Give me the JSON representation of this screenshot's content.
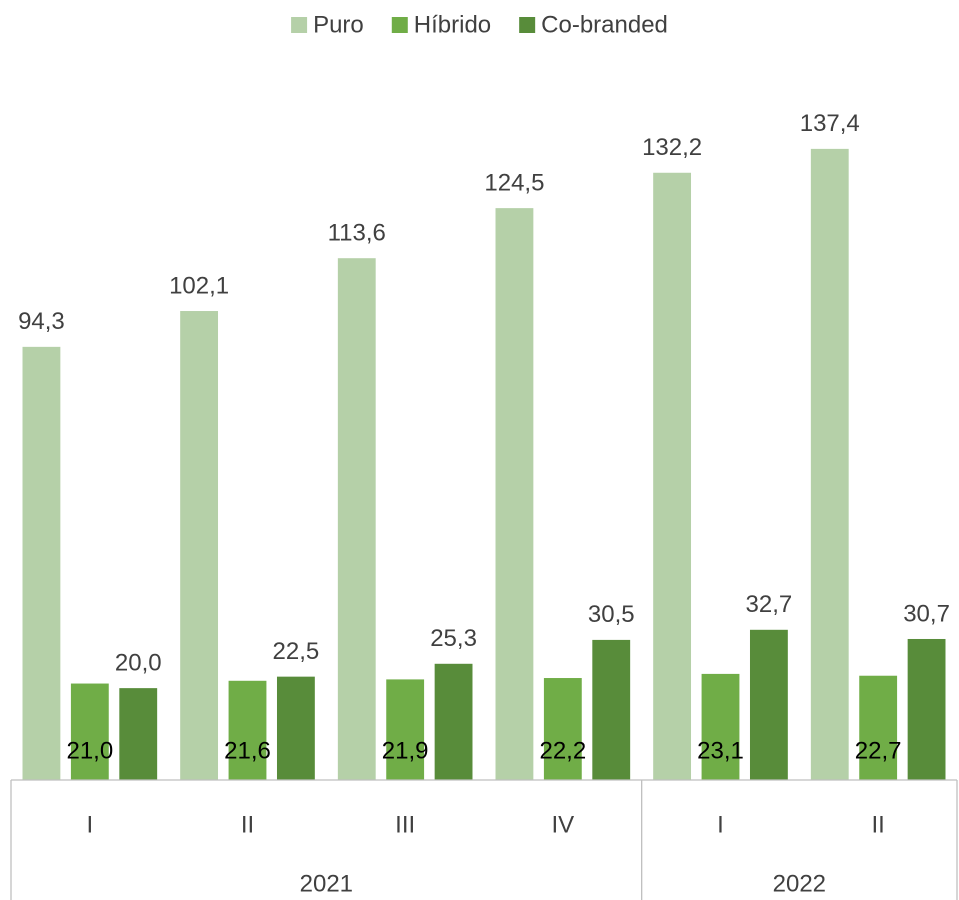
{
  "chart_data": {
    "type": "bar",
    "groups": [
      {
        "label": "2021",
        "categories": [
          "I",
          "II",
          "III",
          "IV"
        ]
      },
      {
        "label": "2022",
        "categories": [
          "I",
          "II"
        ]
      }
    ],
    "series": [
      {
        "name": "Puro",
        "color": "#b5d0a8",
        "label_position": "above",
        "values": [
          94.3,
          102.1,
          113.6,
          124.5,
          132.2,
          137.4
        ],
        "value_labels": [
          "94,3",
          "102,1",
          "113,6",
          "124,5",
          "132,2",
          "137,4"
        ]
      },
      {
        "name": "Híbrido",
        "color": "#70ad47",
        "label_position": "inside-base",
        "values": [
          21.0,
          21.6,
          21.9,
          22.2,
          23.1,
          22.7
        ],
        "value_labels": [
          "21,0",
          "21,6",
          "21,9",
          "22,2",
          "23,1",
          "22,7"
        ]
      },
      {
        "name": "Co-branded",
        "color": "#588c3a",
        "label_position": "above",
        "values": [
          20.0,
          22.5,
          25.3,
          30.5,
          32.7,
          30.7
        ],
        "value_labels": [
          "20,0",
          "22,5",
          "25,3",
          "30,5",
          "32,7",
          "30,7"
        ]
      }
    ],
    "ylim": [
      0,
      150
    ],
    "legend": "top"
  }
}
